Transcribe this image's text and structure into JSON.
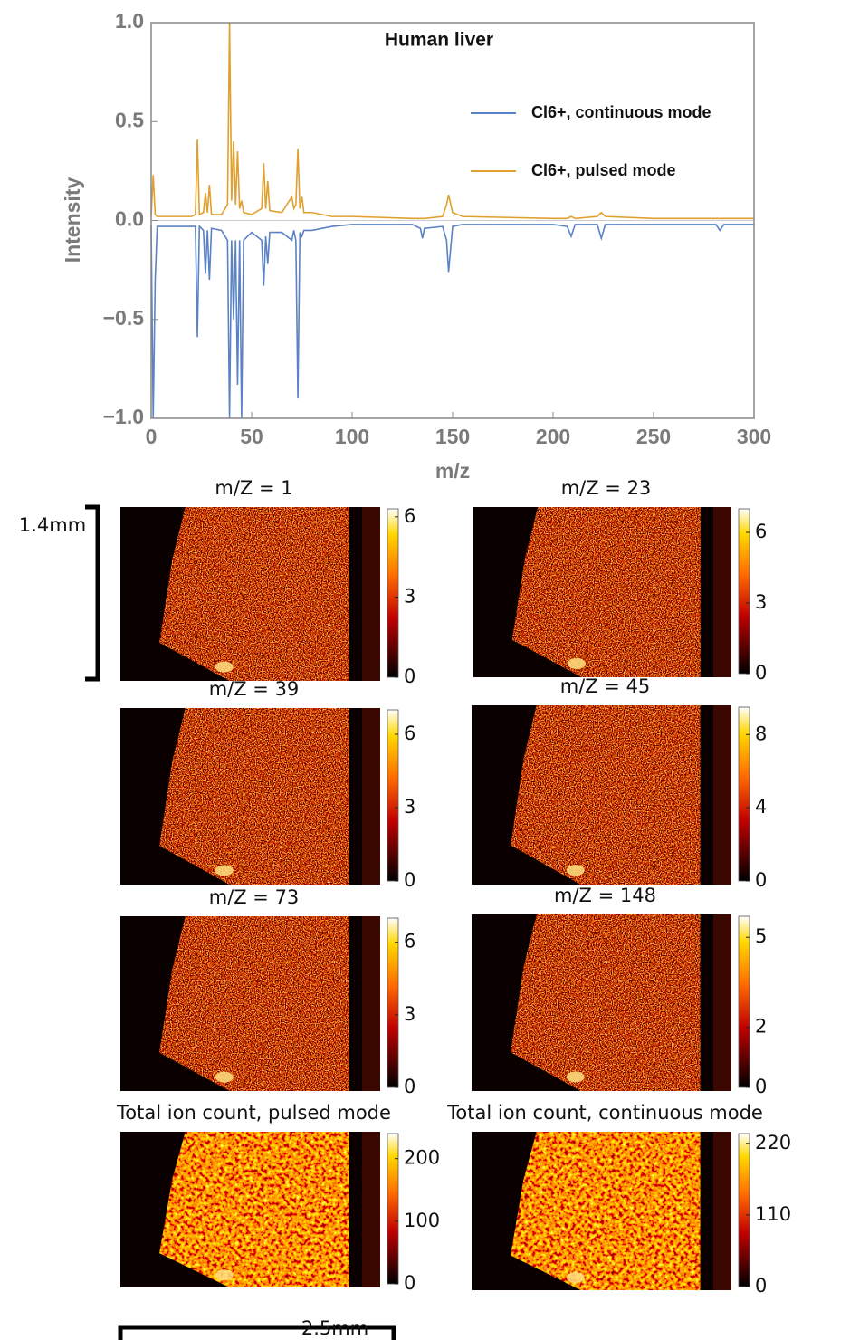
{
  "chart_data": [
    {
      "type": "line",
      "title": "Human liver",
      "xlabel": "m/z",
      "ylabel": "Intensity",
      "xlim": [
        0,
        300
      ],
      "ylim": [
        -1,
        1
      ],
      "xticks": [
        0,
        50,
        100,
        150,
        200,
        250,
        300
      ],
      "yticks": [
        {
          "value": -1,
          "label": "−1.0"
        },
        {
          "value": -0.5,
          "label": "−0.5"
        },
        {
          "value": 0,
          "label": "0.0"
        },
        {
          "value": 0.5,
          "label": "0.5"
        },
        {
          "value": 1,
          "label": "1.0"
        }
      ],
      "x": [
        0,
        1,
        2,
        3,
        10,
        20,
        22,
        23,
        24,
        26,
        27,
        28,
        29,
        30,
        35,
        38,
        39,
        40,
        41,
        42,
        43,
        44,
        45,
        46,
        50,
        55,
        56,
        57,
        58,
        59,
        65,
        70,
        71,
        72,
        73,
        74,
        75,
        76,
        80,
        90,
        100,
        130,
        134,
        135,
        136,
        145,
        147,
        148,
        150,
        155,
        200,
        207,
        209,
        211,
        222,
        224,
        226,
        250,
        281,
        283,
        285,
        300
      ],
      "series": [
        {
          "name": "Cl6+, continuous mode",
          "color": "#5b82c4",
          "values": [
            -0.02,
            -1.0,
            -0.3,
            -0.03,
            -0.03,
            -0.03,
            -0.03,
            -0.59,
            -0.03,
            -0.05,
            -0.27,
            -0.05,
            -0.3,
            -0.04,
            -0.05,
            -0.1,
            -1.0,
            -0.1,
            -0.5,
            -0.1,
            -0.83,
            -0.1,
            -1.0,
            -0.1,
            -0.06,
            -0.1,
            -0.33,
            -0.08,
            -0.22,
            -0.06,
            -0.06,
            -0.1,
            -0.05,
            -0.1,
            -0.9,
            -0.06,
            -0.08,
            -0.05,
            -0.05,
            -0.03,
            -0.02,
            -0.02,
            -0.04,
            -0.09,
            -0.04,
            -0.03,
            -0.1,
            -0.26,
            -0.03,
            -0.02,
            -0.02,
            -0.03,
            -0.08,
            -0.02,
            -0.02,
            -0.09,
            -0.02,
            -0.02,
            -0.02,
            -0.05,
            -0.02,
            -0.02
          ]
        },
        {
          "name": "Cl6+, pulsed mode",
          "color": "#e0a030",
          "values": [
            0.02,
            0.23,
            0.03,
            0.02,
            0.02,
            0.02,
            0.03,
            0.41,
            0.03,
            0.04,
            0.14,
            0.04,
            0.18,
            0.03,
            0.03,
            0.08,
            1.0,
            0.1,
            0.4,
            0.08,
            0.35,
            0.06,
            0.1,
            0.04,
            0.03,
            0.06,
            0.29,
            0.06,
            0.2,
            0.05,
            0.04,
            0.12,
            0.06,
            0.08,
            0.36,
            0.06,
            0.12,
            0.04,
            0.04,
            0.02,
            0.02,
            0.01,
            0.01,
            0.01,
            0.01,
            0.02,
            0.08,
            0.13,
            0.04,
            0.02,
            0.01,
            0.01,
            0.02,
            0.01,
            0.02,
            0.04,
            0.02,
            0.01,
            0.01,
            0.01,
            0.01,
            0.01
          ]
        }
      ]
    },
    {
      "type": "heatmap",
      "title": "m/Z = 1",
      "clim": [
        0,
        6.3
      ],
      "cticks": [
        0,
        3,
        6
      ]
    },
    {
      "type": "heatmap",
      "title": "m/Z = 23",
      "clim": [
        0,
        7
      ],
      "cticks": [
        0,
        3,
        6
      ]
    },
    {
      "type": "heatmap",
      "title": "m/Z = 39",
      "clim": [
        0,
        7
      ],
      "cticks": [
        0,
        3,
        6
      ]
    },
    {
      "type": "heatmap",
      "title": "m/Z = 45",
      "clim": [
        0,
        9.5
      ],
      "cticks": [
        0,
        4,
        8
      ]
    },
    {
      "type": "heatmap",
      "title": "m/Z = 73",
      "clim": [
        0,
        7
      ],
      "cticks": [
        0,
        3,
        6
      ]
    },
    {
      "type": "heatmap",
      "title": "m/Z = 148",
      "clim": [
        0,
        5.7
      ],
      "cticks": [
        0,
        2,
        5
      ]
    },
    {
      "type": "heatmap",
      "title": "Total ion count, pulsed mode",
      "clim": [
        0,
        240
      ],
      "cticks": [
        0,
        100,
        200
      ]
    },
    {
      "type": "heatmap",
      "title": "Total ion count, continuous mode",
      "clim": [
        0,
        235
      ],
      "cticks": [
        0,
        110,
        220
      ]
    }
  ],
  "scale_bars": {
    "vertical": "1.4mm",
    "horizontal": "2.5mm"
  }
}
